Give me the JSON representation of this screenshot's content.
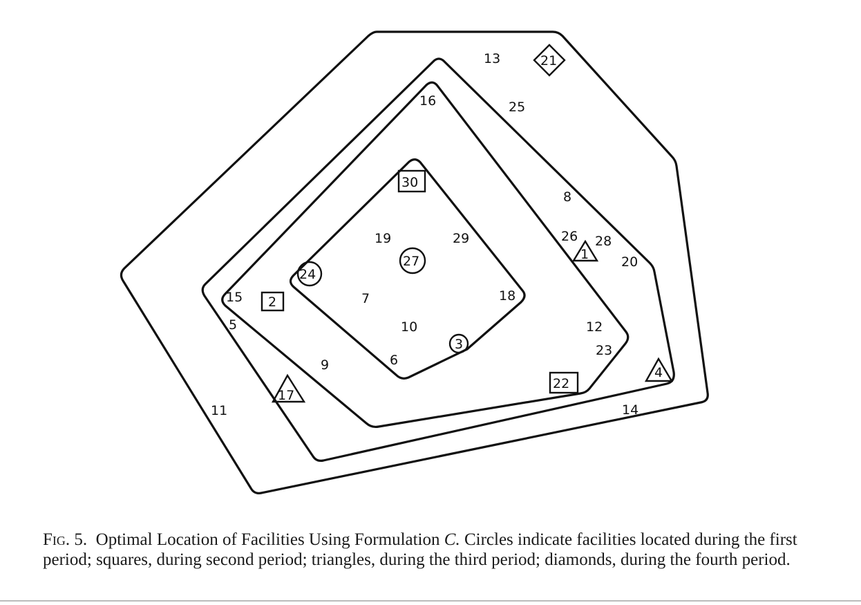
{
  "figure": {
    "labels": {
      "n2": "2",
      "n3": "3",
      "n4": "4",
      "n5": "5",
      "n6": "6",
      "n7": "7",
      "n8": "8",
      "n9": "9",
      "n10": "10",
      "n11": "11",
      "n12": "12",
      "n13": "13",
      "n14": "14",
      "n15": "15",
      "n16": "16",
      "n17": "17",
      "n18": "18",
      "n19": "19",
      "n20": "20",
      "n21": "21",
      "n22": "22",
      "n23": "23",
      "n24": "24",
      "n25": "25",
      "n26": "26",
      "n27": "27",
      "n28": "28",
      "n29": "29",
      "n30": "30"
    },
    "markers": {
      "circle": [
        "3",
        "24",
        "27"
      ],
      "square": [
        "2",
        "22",
        "30"
      ],
      "triangle": [
        "1",
        "4",
        "17"
      ],
      "diamond": [
        "21"
      ]
    }
  },
  "caption": {
    "label": "Fig. 5.",
    "text_before": "Optimal Location of Facilities Using Formulation ",
    "formulation": "C.",
    "text_after": " Circles indicate facilities located during the first period; squares, during second period; triangles, during the third period; diamonds, during the fourth period."
  }
}
